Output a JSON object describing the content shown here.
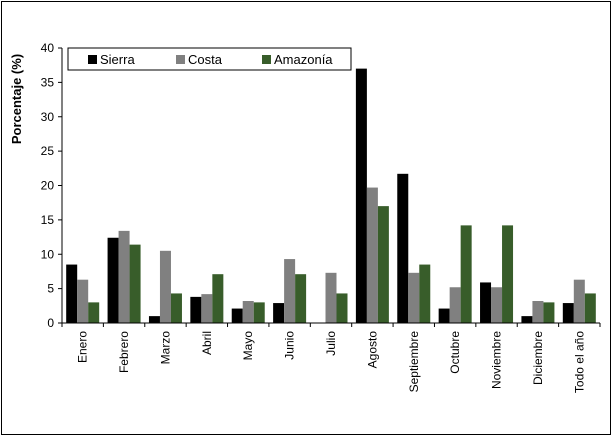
{
  "chart_data": {
    "type": "bar",
    "title": "",
    "xlabel": "",
    "ylabel": "Porcentaje (%)",
    "ylim": [
      0,
      40
    ],
    "yticks": [
      0,
      5,
      10,
      15,
      20,
      25,
      30,
      35,
      40
    ],
    "grid": false,
    "legend_position": "top-left",
    "categories": [
      "Enero",
      "Febrero",
      "Marzo",
      "Abril",
      "Mayo",
      "Junio",
      "Julio",
      "Agosto",
      "Septiembre",
      "Octubre",
      "Noviembre",
      "Diciembre",
      "Todo el año"
    ],
    "series": [
      {
        "name": "Sierra",
        "color": "#000000",
        "values": [
          8.5,
          12.4,
          1.0,
          3.8,
          2.1,
          2.9,
          0,
          37.0,
          21.7,
          2.1,
          5.9,
          1.0,
          2.9
        ]
      },
      {
        "name": "Costa",
        "color": "#808080",
        "values": [
          6.3,
          13.4,
          10.5,
          4.2,
          3.2,
          9.3,
          7.3,
          19.7,
          7.3,
          5.2,
          5.2,
          3.2,
          6.3
        ]
      },
      {
        "name": "Amazonía",
        "color": "#385D2A",
        "values": [
          3.0,
          11.4,
          4.3,
          7.1,
          3.0,
          7.1,
          4.3,
          17.0,
          8.5,
          14.2,
          14.2,
          3.0,
          4.3
        ]
      }
    ]
  }
}
